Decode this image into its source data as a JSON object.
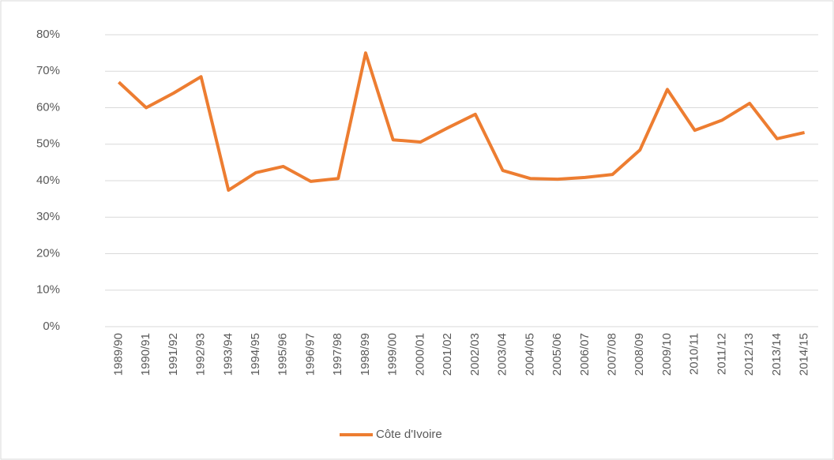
{
  "chart_data": {
    "type": "line",
    "categories": [
      "1989/90",
      "1990/91",
      "1991/92",
      "1992/93",
      "1993/94",
      "1994/95",
      "1995/96",
      "1996/97",
      "1997/98",
      "1998/99",
      "1999/00",
      "2000/01",
      "2001/02",
      "2002/03",
      "2003/04",
      "2004/05",
      "2005/06",
      "2006/07",
      "2007/08",
      "2008/09",
      "2009/10",
      "2010/11",
      "2011/12",
      "2012/13",
      "2013/14",
      "2014/15"
    ],
    "series": [
      {
        "name": "Côte d'Ivoire",
        "color": "#ed7d31",
        "values": [
          67,
          60,
          64,
          68.5,
          37.4,
          42.2,
          43.9,
          39.8,
          40.6,
          75,
          51.2,
          50.6,
          54.5,
          58.2,
          42.8,
          40.6,
          40.4,
          40.9,
          41.7,
          48.4,
          65,
          53.8,
          56.6,
          61.2,
          51.5,
          53.2
        ]
      }
    ],
    "ylim": [
      0,
      80
    ],
    "yticks": [
      {
        "value": 0,
        "label": "0%"
      },
      {
        "value": 10,
        "label": "10%"
      },
      {
        "value": 20,
        "label": "20%"
      },
      {
        "value": 30,
        "label": "30%"
      },
      {
        "value": 40,
        "label": "40%"
      },
      {
        "value": 50,
        "label": "50%"
      },
      {
        "value": 60,
        "label": "60%"
      },
      {
        "value": 70,
        "label": "70%"
      },
      {
        "value": 80,
        "label": "80%"
      }
    ],
    "grid": true,
    "legend": "bottom"
  }
}
